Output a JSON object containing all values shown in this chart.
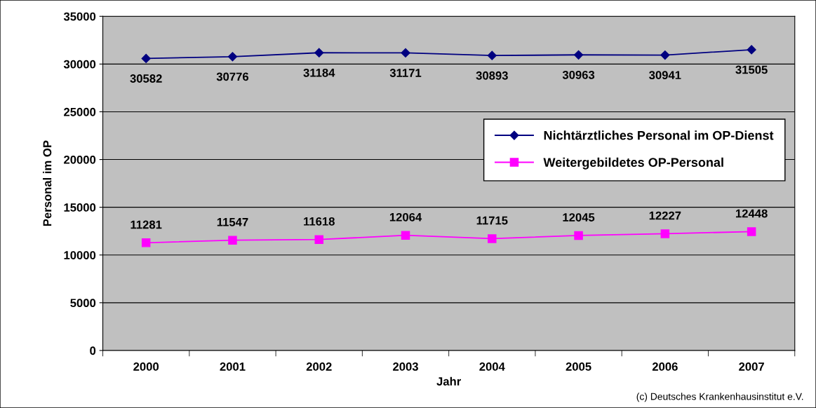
{
  "chart_data": {
    "type": "line",
    "xlabel": "Jahr",
    "ylabel": "Personal im OP",
    "categories": [
      "2000",
      "2001",
      "2002",
      "2003",
      "2004",
      "2005",
      "2006",
      "2007"
    ],
    "series": [
      {
        "name": "Nichtärztliches Personal im OP-Dienst",
        "color": "#000080",
        "marker": "diamond",
        "values": [
          30582,
          30776,
          31184,
          31171,
          30893,
          30963,
          30941,
          31505
        ]
      },
      {
        "name": "Weitergebildetes OP-Personal",
        "color": "#ff00ff",
        "marker": "square",
        "values": [
          11281,
          11547,
          11618,
          12064,
          11715,
          12045,
          12227,
          12448
        ]
      }
    ],
    "ylim": [
      0,
      35000
    ],
    "yticks": [
      0,
      5000,
      10000,
      15000,
      20000,
      25000,
      30000,
      35000
    ],
    "grid": "y",
    "legend": "right",
    "data_labels": true,
    "line_style": "solid",
    "annotations": [
      "(c) Deutsches Krankenhausinstitut e.V."
    ]
  }
}
